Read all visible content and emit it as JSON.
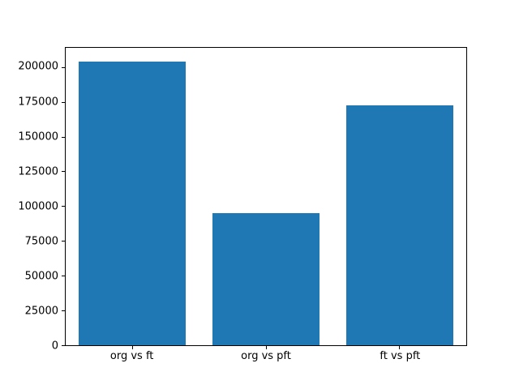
{
  "chart_data": {
    "type": "bar",
    "categories": [
      "org vs ft",
      "org vs pft",
      "ft vs pft"
    ],
    "values": [
      204000,
      95000,
      173000
    ],
    "title": "",
    "xlabel": "",
    "ylabel": "",
    "ylim": [
      0,
      214200
    ],
    "yticks": [
      0,
      25000,
      50000,
      75000,
      100000,
      125000,
      150000,
      175000,
      200000
    ],
    "bar_color": "#1f77b4",
    "bar_width_fraction": 0.8,
    "grid": "off",
    "legend": "none",
    "background_color": "#ffffff",
    "axis_color": "#000000"
  }
}
